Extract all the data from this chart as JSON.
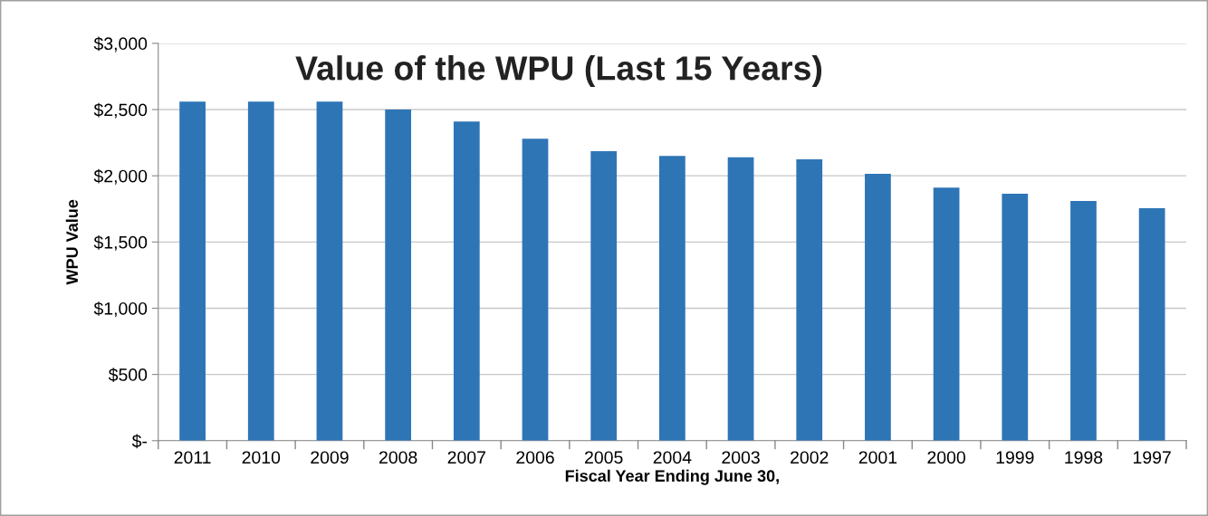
{
  "chart_data": {
    "type": "bar",
    "title": "Value of the WPU (Last 15 Years)",
    "xlabel": "Fiscal Year Ending June 30,",
    "ylabel": "WPU Value",
    "categories": [
      "2011",
      "2010",
      "2009",
      "2008",
      "2007",
      "2006",
      "2005",
      "2004",
      "2003",
      "2002",
      "2001",
      "2000",
      "1999",
      "1998",
      "1997"
    ],
    "values": [
      2560,
      2560,
      2560,
      2500,
      2410,
      2280,
      2185,
      2150,
      2140,
      2125,
      2015,
      1910,
      1865,
      1810,
      1755
    ],
    "color": "#2e75b6",
    "ylim": [
      0,
      3000
    ],
    "yticks": [
      {
        "value": 0,
        "label": "$-"
      },
      {
        "value": 500,
        "label": "$500"
      },
      {
        "value": 1000,
        "label": "$1,000"
      },
      {
        "value": 1500,
        "label": "$1,500"
      },
      {
        "value": 2000,
        "label": "$2,000"
      },
      {
        "value": 2500,
        "label": "$2,500"
      },
      {
        "value": 3000,
        "label": "$3,000"
      }
    ],
    "grid": "y"
  }
}
